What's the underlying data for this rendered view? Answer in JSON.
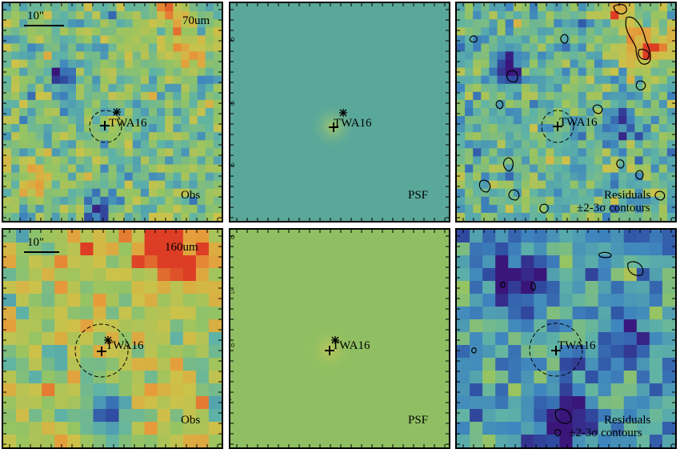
{
  "colors": {
    "psf_top_background": "#5aa89a",
    "psf_bottom_background": "#8fbf62",
    "colormap": [
      "#3a157a",
      "#2f4fa3",
      "#3f86be",
      "#5fb3a6",
      "#96c462",
      "#ccc24a",
      "#e79a3a",
      "#dd3d24"
    ]
  },
  "rows": [
    {
      "wavelength_label": "70um",
      "panels": [
        {
          "id": "obs-70",
          "kind": "observed",
          "corner_label": "Obs",
          "target_label": "TWA16",
          "scale_bar_label": "10\""
        },
        {
          "id": "psf-70",
          "kind": "psf",
          "corner_label": "PSF",
          "target_label": "TWA16",
          "axis_ticks": [
            "30",
            "20",
            "10"
          ]
        },
        {
          "id": "res-70",
          "kind": "residual",
          "corner_label_line1": "Residuals",
          "corner_label_line2": "±2-3σ contours",
          "target_label": "TWA16"
        }
      ]
    },
    {
      "wavelength_label": "160um",
      "panels": [
        {
          "id": "obs-160",
          "kind": "observed",
          "corner_label": "Obs",
          "target_label": "TWA16",
          "scale_bar_label": "10\""
        },
        {
          "id": "psf-160",
          "kind": "psf",
          "corner_label": "PSF",
          "target_label": "TWA16",
          "axis_ticks": [
            "20",
            "15",
            "10",
            "5"
          ]
        },
        {
          "id": "res-160",
          "kind": "residual",
          "corner_label_line1": "Residuals",
          "corner_label_line2": "±2-3σ contours",
          "target_label": "TWA16"
        }
      ]
    }
  ]
}
